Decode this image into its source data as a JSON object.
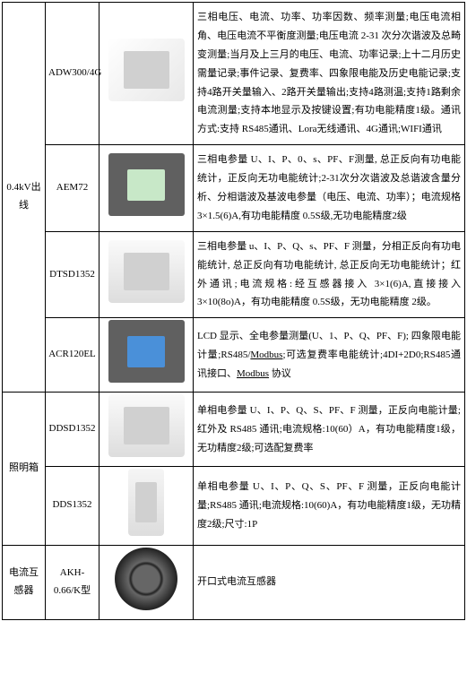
{
  "categories": {
    "outgoing": "0.4kV出线",
    "lighting": "照明箱",
    "ct": "电流互感器"
  },
  "rows": [
    {
      "model": "ADW300/4G",
      "desc": "三相电压、电流、功率、功率因数、频率测量;电压电流相角、电压电流不平衡度测量;电压电流 2-31 次分次谐波及总畸变测量;当月及上三月的电压、电流、功率记录;上十二月历史需量记录;事件记录、复费率、四象限电能及历史电能记录;支持4路开关量输入、2路开关量输出;支持4路测温;支持1路剩余电流测量;支持本地显示及按键设置;有功电能精度1级。通讯方式:支持 RS485通讯、Lora无线通讯、4G通讯;WIFI通讯"
    },
    {
      "model": "AEM72",
      "desc": "三相电参量 U、I、P、0、s、PF、F测量, 总正反向有功电能统计，正反向无功电能统计;2-31次分次谐波及总谐波含量分析、分相谐波及基波电参量（电压、电流、功率）；电流规格 3×1.5(6)A,有功电能精度 0.5S级,无功电能精度2级"
    },
    {
      "model": "DTSD1352",
      "desc": "三相电参量 u、I、P、Q、s、PF、F 测量，分相正反向有功电能统计, 总正反向有功电能统计, 总正反向无功电能统计；红外通讯;电流规格:经互感器接入 3×1(6)A,直接接入 3×10(8o)A，有功电能精度 0.5S级，无功电能精度 2级。"
    },
    {
      "model": "ACR120EL",
      "desc_html": "LCD 显示、全电参量测量(U、1、P、Q、PF、F); 四象限电能计量;RS485/<u>Modbus</u>;可选复费率电能统计;4DI+2D0;RS485通讯接口、<u>Modbus</u> 协议"
    },
    {
      "model": "DDSD1352",
      "desc": "单相电参量 U、I、P、Q、S、PF、F 测量，正反向电能计量;红外及 RS485 通讯;电流规格:10(60）A，有功电能精度1级，无功精度2级;可选配复费率"
    },
    {
      "model": "DDS1352",
      "desc": "单相电参量 U、I、P、Q、S、PF、F 测量，正反向电能计量;RS485 通讯;电流规格:10(60)A，有功电能精度1级，无功精度2级;尺寸:1P"
    },
    {
      "model": "AKH-0.66/K型",
      "desc": "开口式电流互感器"
    }
  ],
  "table": {
    "col_widths": [
      "48px",
      "60px",
      "105px",
      "auto"
    ]
  }
}
